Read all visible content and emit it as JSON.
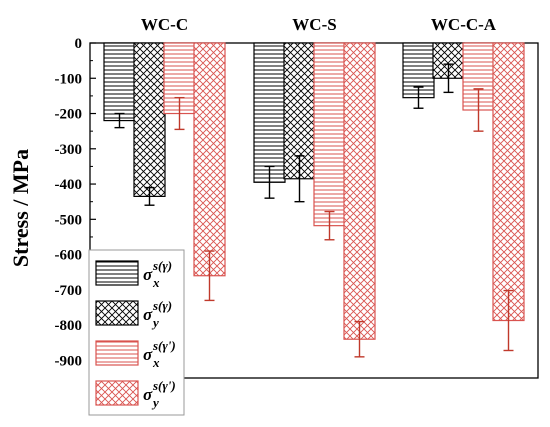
{
  "chart_data": {
    "type": "bar",
    "categories": [
      "WC-C",
      "WC-S",
      "WC-C-A"
    ],
    "ylabel": "Stress / MPa",
    "ylim": [
      -950,
      0
    ],
    "yticks": [
      0,
      -100,
      -200,
      -300,
      -400,
      -500,
      -600,
      -700,
      -800,
      -900
    ],
    "grid": false,
    "legend_position": "bottom-left",
    "series": [
      {
        "name": "σ_x^{s(γ)}",
        "legend": {
          "base": "σ",
          "sup": "s(γ)",
          "sub": "x"
        },
        "values": [
          -220,
          -395,
          -155
        ],
        "errors": [
          20,
          45,
          30
        ],
        "color": "#000000",
        "pattern": "horizontal"
      },
      {
        "name": "σ_y^{s(γ)}",
        "legend": {
          "base": "σ",
          "sup": "s(γ)",
          "sub": "y"
        },
        "values": [
          -435,
          -385,
          -100
        ],
        "errors": [
          25,
          65,
          40
        ],
        "color": "#000000",
        "pattern": "crosshatch"
      },
      {
        "name": "σ_x^{s(γ')}",
        "legend": {
          "base": "σ",
          "sup": "s(γ')",
          "sub": "x"
        },
        "values": [
          -200,
          -518,
          -190
        ],
        "errors": [
          45,
          40,
          60
        ],
        "color": "#d9534f",
        "pattern": "horizontal"
      },
      {
        "name": "σ_y^{s(γ')}",
        "legend": {
          "base": "σ",
          "sup": "s(γ')",
          "sub": "y"
        },
        "values": [
          -660,
          -840,
          -787
        ],
        "errors": [
          70,
          50,
          85
        ],
        "color": "#d9534f",
        "pattern": "crosshatch"
      }
    ]
  }
}
